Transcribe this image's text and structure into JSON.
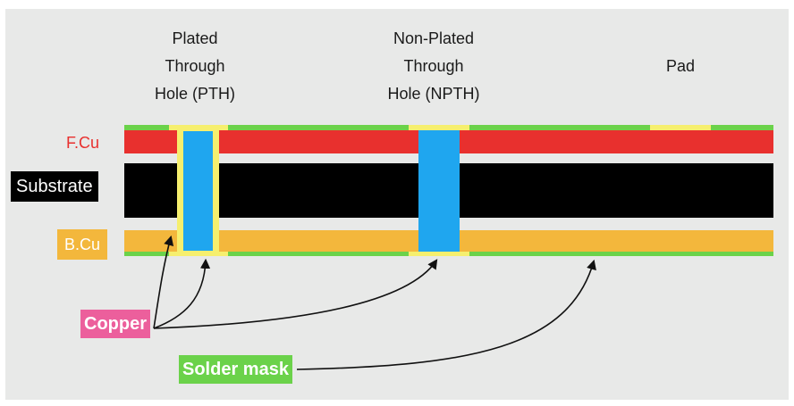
{
  "columns": {
    "pth": [
      "Plated",
      "Through",
      "Hole (PTH)"
    ],
    "npth": [
      "Non-Plated",
      "Through",
      "Hole (NPTH)"
    ],
    "pad": [
      "Pad"
    ]
  },
  "layers": {
    "front_copper": "F.Cu",
    "substrate": "Substrate",
    "back_copper": "B.Cu"
  },
  "callouts": {
    "copper": "Copper",
    "solder_mask": "Solder mask"
  },
  "colors": {
    "background": "#e8e9e8",
    "front_copper": "#e8302e",
    "substrate": "#000000",
    "back_copper": "#f3b73c",
    "hole": "#1fa6ef",
    "plating": "#f6ef6e",
    "solder_mask": "#6bd24a",
    "copper_tag": "#ec5f9c",
    "solder_tag": "#6bd24a"
  }
}
